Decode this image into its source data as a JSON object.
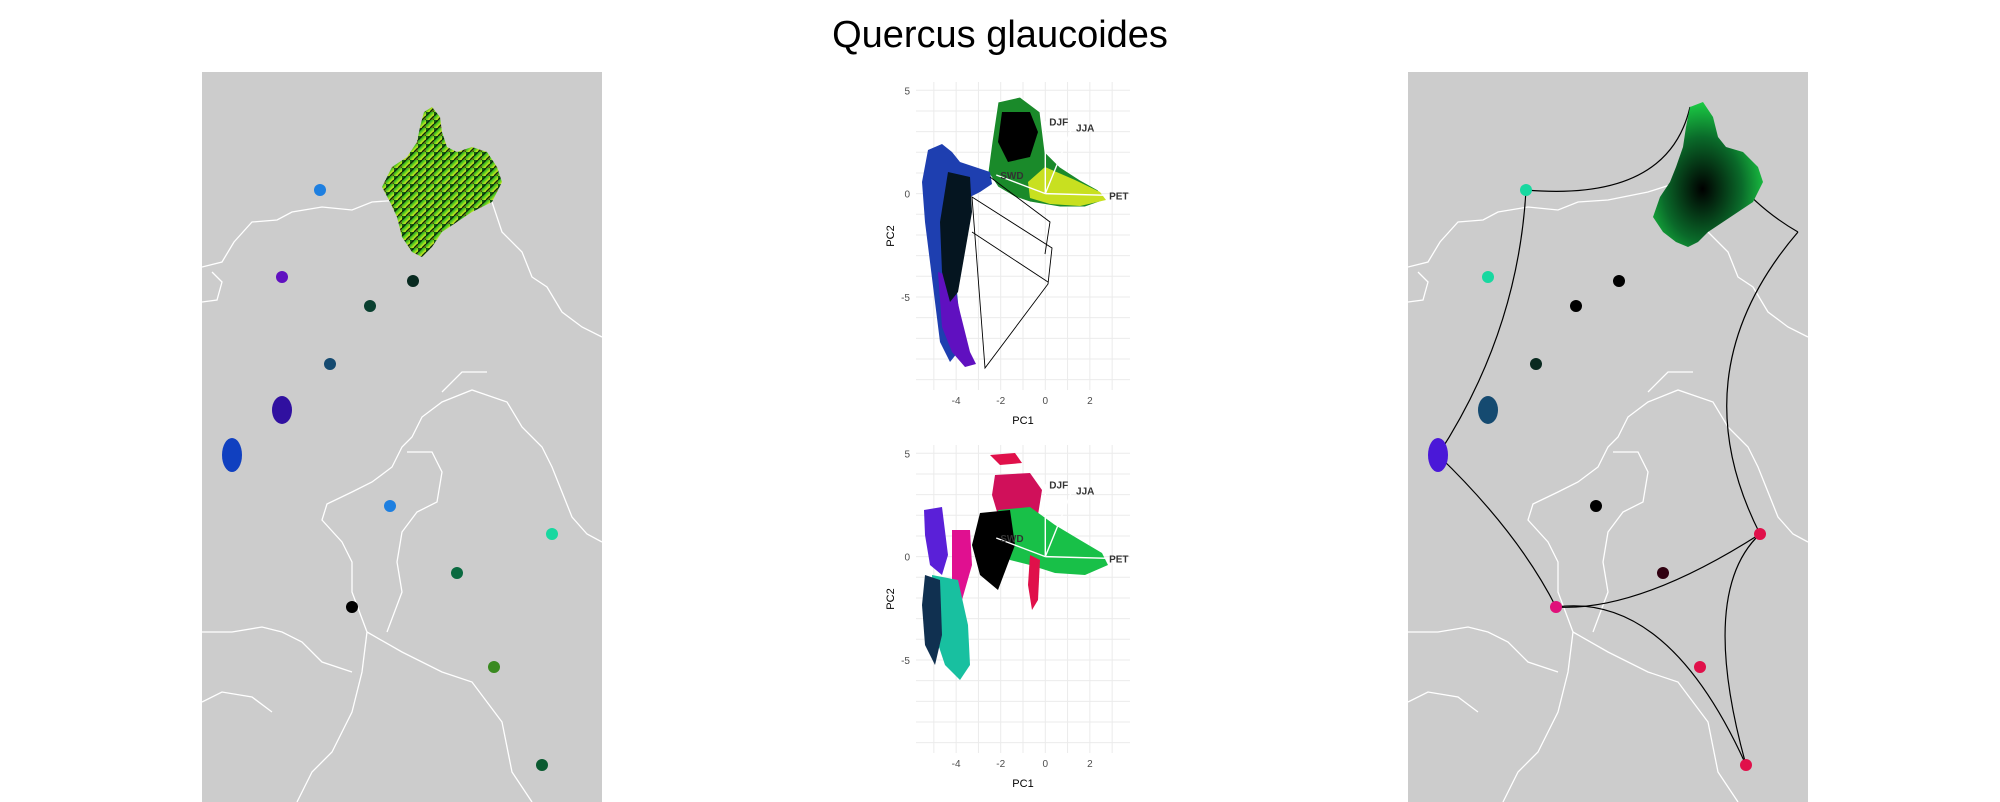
{
  "title": "Quercus glaucoides",
  "maps": [
    {
      "name": "left-map",
      "background": "#cccccc",
      "border": "#ffffff"
    },
    {
      "name": "right-map",
      "background": "#cccccc",
      "border": "#ffffff"
    }
  ],
  "colors": {
    "green": "#1fe04a",
    "yellow": "#d8f020",
    "blue": "#1e7fe0",
    "purple": "#6010c0",
    "teal": "#18d8a0",
    "crimson": "#e0104a",
    "black": "#000000"
  },
  "chart_data": [
    {
      "type": "scatter",
      "xlabel": "PC1",
      "ylabel": "PC2",
      "xticks": [
        "-4",
        "-2",
        "0",
        "2"
      ],
      "yticks": [
        "5",
        "0",
        "-5"
      ],
      "xlim": [
        -5.8,
        3.8
      ],
      "ylim": [
        -9.5,
        5.4
      ],
      "grid": true,
      "vectors": [
        {
          "label": "DJF",
          "x": 0.0,
          "y": 3.5
        },
        {
          "label": "JJA",
          "x": 1.2,
          "y": 3.2
        },
        {
          "label": "SWD",
          "x": -2.2,
          "y": 0.9
        },
        {
          "label": "PET",
          "x": 3.4,
          "y": -0.1
        }
      ]
    },
    {
      "type": "scatter",
      "xlabel": "PC1",
      "ylabel": "PC2",
      "xticks": [
        "-4",
        "-2",
        "0",
        "2"
      ],
      "yticks": [
        "5",
        "0",
        "-5"
      ],
      "xlim": [
        -5.8,
        3.8
      ],
      "ylim": [
        -9.5,
        5.4
      ],
      "grid": true,
      "vectors": [
        {
          "label": "DJF",
          "x": 0.0,
          "y": 3.5
        },
        {
          "label": "JJA",
          "x": 1.2,
          "y": 3.2
        },
        {
          "label": "SWD",
          "x": -2.2,
          "y": 0.9
        },
        {
          "label": "PET",
          "x": 3.4,
          "y": -0.1
        }
      ]
    }
  ]
}
